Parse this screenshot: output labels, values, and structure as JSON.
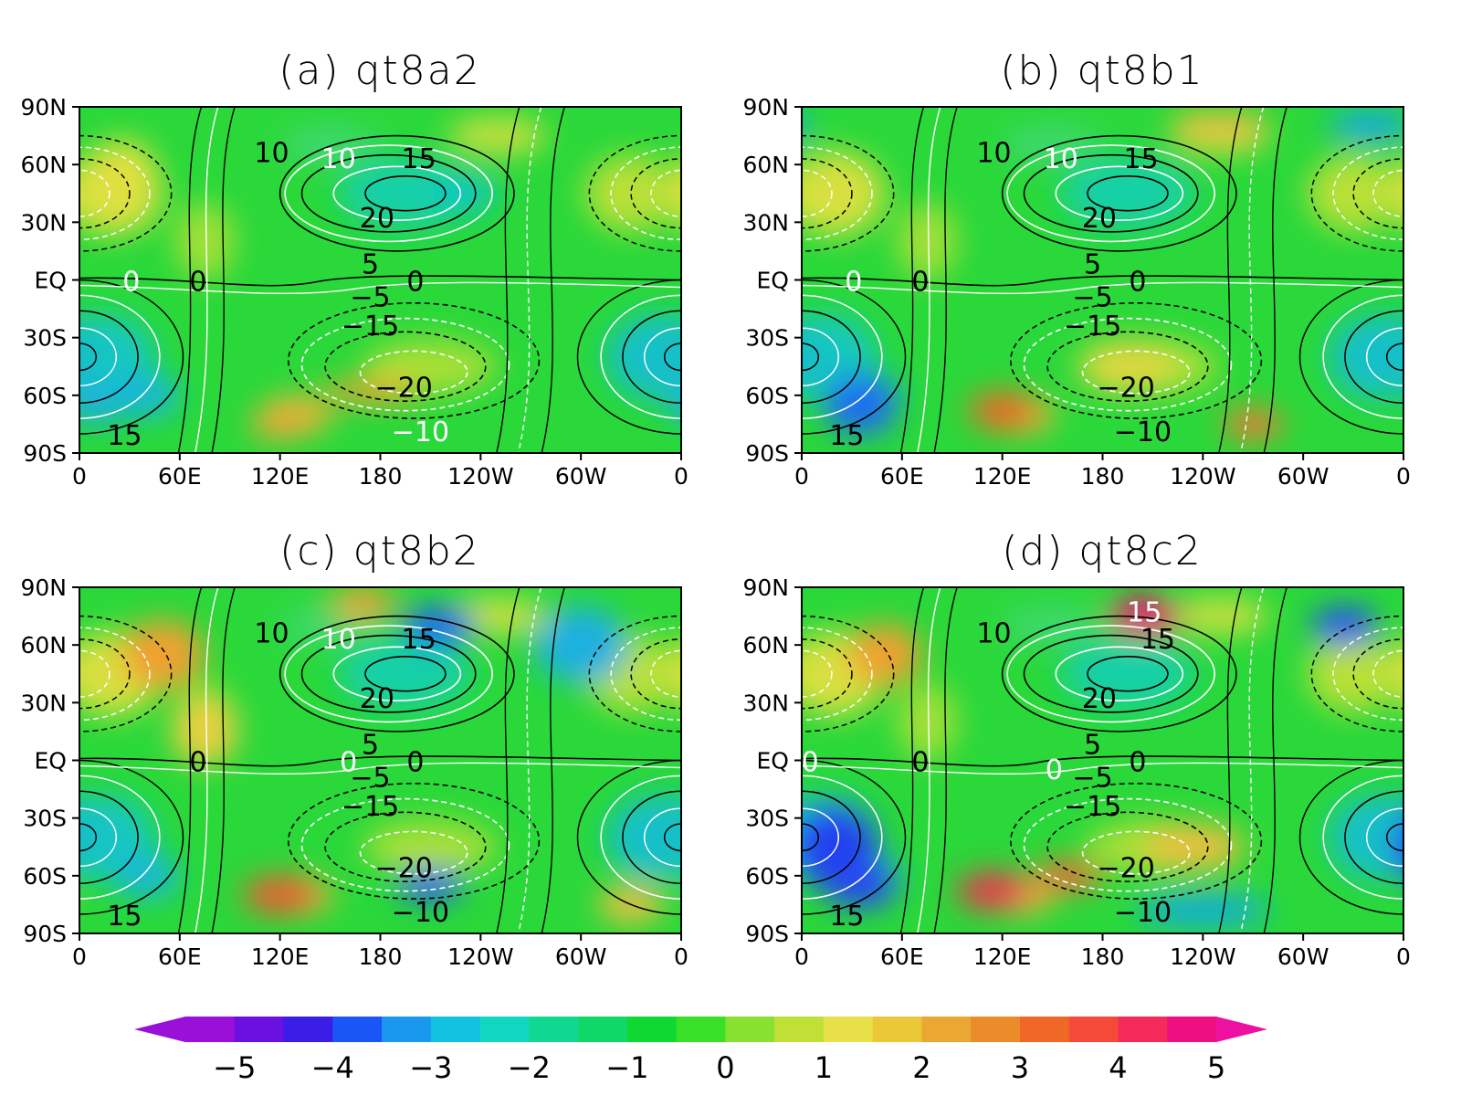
{
  "chart_data": [
    {
      "type": "contour-map",
      "title": "(a) qt8a2",
      "x_ticks": [
        "0",
        "60E",
        "120E",
        "180",
        "120W",
        "60W",
        "0"
      ],
      "y_ticks": [
        "90N",
        "60N",
        "30N",
        "EQ",
        "30S",
        "60S",
        "90S"
      ],
      "contour_labels": [
        {
          "text": "10",
          "lon": 115,
          "lat": 66,
          "color": "black"
        },
        {
          "text": "10",
          "lon": 155,
          "lat": 63,
          "color": "white"
        },
        {
          "text": "15",
          "lon": 203,
          "lat": 63,
          "color": "black"
        },
        {
          "text": "20",
          "lon": 178,
          "lat": 32,
          "color": "black"
        },
        {
          "text": "5",
          "lon": 174,
          "lat": 8,
          "color": "black"
        },
        {
          "text": "0",
          "lon": 31,
          "lat": -1,
          "color": "white"
        },
        {
          "text": "0",
          "lon": 71,
          "lat": -1,
          "color": "black"
        },
        {
          "text": "0",
          "lon": 201,
          "lat": -1,
          "color": "black"
        },
        {
          "text": "−5",
          "lon": 174,
          "lat": -9,
          "color": "black"
        },
        {
          "text": "−15",
          "lon": 174,
          "lat": -24,
          "color": "black"
        },
        {
          "text": "−20",
          "lon": 194,
          "lat": -56,
          "color": "black"
        },
        {
          "text": "−10",
          "lon": 204,
          "lat": -79,
          "color": "white"
        },
        {
          "text": "15",
          "lon": 27,
          "lat": -81,
          "color": "black"
        }
      ]
    },
    {
      "type": "contour-map",
      "title": "(b) qt8b1",
      "x_ticks": [
        "0",
        "60E",
        "120E",
        "180",
        "120W",
        "60W",
        "0"
      ],
      "y_ticks": [
        "90N",
        "60N",
        "30N",
        "EQ",
        "30S",
        "60S",
        "90S"
      ],
      "contour_labels": [
        {
          "text": "10",
          "lon": 115,
          "lat": 66,
          "color": "black"
        },
        {
          "text": "10",
          "lon": 155,
          "lat": 63,
          "color": "white"
        },
        {
          "text": "15",
          "lon": 203,
          "lat": 63,
          "color": "black"
        },
        {
          "text": "20",
          "lon": 178,
          "lat": 32,
          "color": "black"
        },
        {
          "text": "5",
          "lon": 174,
          "lat": 8,
          "color": "black"
        },
        {
          "text": "0",
          "lon": 31,
          "lat": -1,
          "color": "white"
        },
        {
          "text": "0",
          "lon": 71,
          "lat": -1,
          "color": "black"
        },
        {
          "text": "0",
          "lon": 201,
          "lat": -1,
          "color": "black"
        },
        {
          "text": "−5",
          "lon": 174,
          "lat": -9,
          "color": "black"
        },
        {
          "text": "−15",
          "lon": 174,
          "lat": -24,
          "color": "black"
        },
        {
          "text": "−20",
          "lon": 194,
          "lat": -56,
          "color": "black"
        },
        {
          "text": "−10",
          "lon": 204,
          "lat": -79,
          "color": "black"
        },
        {
          "text": "15",
          "lon": 27,
          "lat": -81,
          "color": "black"
        }
      ]
    },
    {
      "type": "contour-map",
      "title": "(c) qt8b2",
      "x_ticks": [
        "0",
        "60E",
        "120E",
        "180",
        "120W",
        "60W",
        "0"
      ],
      "y_ticks": [
        "90N",
        "60N",
        "30N",
        "EQ",
        "30S",
        "60S",
        "90S"
      ],
      "contour_labels": [
        {
          "text": "10",
          "lon": 115,
          "lat": 66,
          "color": "black"
        },
        {
          "text": "10",
          "lon": 155,
          "lat": 63,
          "color": "white"
        },
        {
          "text": "15",
          "lon": 203,
          "lat": 63,
          "color": "black"
        },
        {
          "text": "20",
          "lon": 178,
          "lat": 32,
          "color": "black"
        },
        {
          "text": "5",
          "lon": 174,
          "lat": 8,
          "color": "black"
        },
        {
          "text": "0",
          "lon": 71,
          "lat": -1,
          "color": "black"
        },
        {
          "text": "0",
          "lon": 161,
          "lat": -1,
          "color": "white"
        },
        {
          "text": "0",
          "lon": 201,
          "lat": -1,
          "color": "black"
        },
        {
          "text": "−5",
          "lon": 174,
          "lat": -9,
          "color": "black"
        },
        {
          "text": "−15",
          "lon": 174,
          "lat": -24,
          "color": "black"
        },
        {
          "text": "−20",
          "lon": 194,
          "lat": -56,
          "color": "black"
        },
        {
          "text": "−10",
          "lon": 204,
          "lat": -79,
          "color": "black"
        },
        {
          "text": "15",
          "lon": 27,
          "lat": -81,
          "color": "black"
        }
      ]
    },
    {
      "type": "contour-map",
      "title": "(d) qt8c2",
      "x_ticks": [
        "0",
        "60E",
        "120E",
        "180",
        "120W",
        "60W",
        "0"
      ],
      "y_ticks": [
        "90N",
        "60N",
        "30N",
        "EQ",
        "30S",
        "60S",
        "90S"
      ],
      "contour_labels": [
        {
          "text": "15",
          "lon": 205,
          "lat": 77,
          "color": "white"
        },
        {
          "text": "10",
          "lon": 115,
          "lat": 66,
          "color": "black"
        },
        {
          "text": "15",
          "lon": 213,
          "lat": 63,
          "color": "black"
        },
        {
          "text": "20",
          "lon": 178,
          "lat": 32,
          "color": "black"
        },
        {
          "text": "5",
          "lon": 174,
          "lat": 8,
          "color": "black"
        },
        {
          "text": "0",
          "lon": 5,
          "lat": -1,
          "color": "white"
        },
        {
          "text": "0",
          "lon": 71,
          "lat": -1,
          "color": "black"
        },
        {
          "text": "0",
          "lon": 151,
          "lat": -5,
          "color": "white"
        },
        {
          "text": "0",
          "lon": 201,
          "lat": -1,
          "color": "black"
        },
        {
          "text": "−5",
          "lon": 174,
          "lat": -9,
          "color": "black"
        },
        {
          "text": "−15",
          "lon": 174,
          "lat": -24,
          "color": "black"
        },
        {
          "text": "−20",
          "lon": 194,
          "lat": -56,
          "color": "black"
        },
        {
          "text": "−10",
          "lon": 204,
          "lat": -79,
          "color": "black"
        },
        {
          "text": "15",
          "lon": 27,
          "lat": -81,
          "color": "black"
        }
      ]
    }
  ],
  "colorbar": {
    "labels": [
      "−5",
      "−4",
      "−3",
      "−2",
      "−1",
      "0",
      "1",
      "2",
      "3",
      "4",
      "5"
    ],
    "colors": [
      "#9a10d8",
      "#6a10e0",
      "#3a1ee8",
      "#1a55f5",
      "#1a98f0",
      "#12c0e0",
      "#10d8c0",
      "#10d890",
      "#10d868",
      "#10d832",
      "#38e028",
      "#88e030",
      "#c0e038",
      "#e8e048",
      "#eac838",
      "#eaa832",
      "#ea8c2a",
      "#ef6826",
      "#f54a3a",
      "#f52a5a",
      "#ee1080"
    ],
    "low_color": "#9a10d8",
    "high_color": "#ee10a0"
  },
  "colors": {
    "background_field": "#2ad83a",
    "contour_solid": "#000000",
    "contour_dashed": "#000000",
    "contour_white": "#ffffff"
  }
}
